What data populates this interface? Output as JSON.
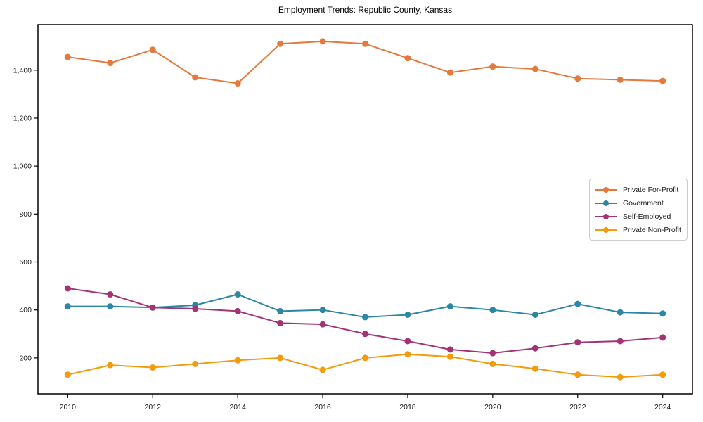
{
  "chart_data": {
    "type": "line",
    "title": "Employment Trends: Republic County, Kansas",
    "xlabel": "",
    "ylabel": "",
    "x": [
      2010,
      2011,
      2012,
      2013,
      2014,
      2015,
      2016,
      2017,
      2018,
      2019,
      2020,
      2021,
      2022,
      2023,
      2024
    ],
    "series": [
      {
        "name": "Private For-Profit",
        "color": "#E5793C",
        "values": [
          1455,
          1430,
          1485,
          1370,
          1345,
          1510,
          1520,
          1510,
          1450,
          1390,
          1415,
          1405,
          1365,
          1360,
          1355
        ]
      },
      {
        "name": "Government",
        "color": "#2C87A5",
        "values": [
          415,
          415,
          410,
          420,
          465,
          395,
          400,
          370,
          380,
          415,
          400,
          380,
          425,
          390,
          385
        ]
      },
      {
        "name": "Self-Employed",
        "color": "#A23476",
        "values": [
          490,
          465,
          410,
          405,
          395,
          345,
          340,
          300,
          270,
          235,
          220,
          240,
          265,
          270,
          285
        ]
      },
      {
        "name": "Private Non-Profit",
        "color": "#F39A0D",
        "values": [
          130,
          170,
          160,
          175,
          190,
          200,
          150,
          200,
          215,
          205,
          175,
          155,
          130,
          120,
          130
        ]
      }
    ],
    "xlim": [
      2009.3,
      2024.7
    ],
    "ylim": [
      50,
      1590
    ],
    "x_ticks": [
      2010,
      2012,
      2014,
      2016,
      2018,
      2020,
      2022,
      2024
    ],
    "y_ticks": [
      {
        "value": 200,
        "label": "200"
      },
      {
        "value": 400,
        "label": "400"
      },
      {
        "value": 600,
        "label": "600"
      },
      {
        "value": 800,
        "label": "800"
      },
      {
        "value": 1000,
        "label": "1,000"
      },
      {
        "value": 1200,
        "label": "1,200"
      },
      {
        "value": 1400,
        "label": "1,400"
      }
    ],
    "grid": false,
    "legend_position": "center-right",
    "marker": "circle",
    "axis_color": "#000000"
  }
}
